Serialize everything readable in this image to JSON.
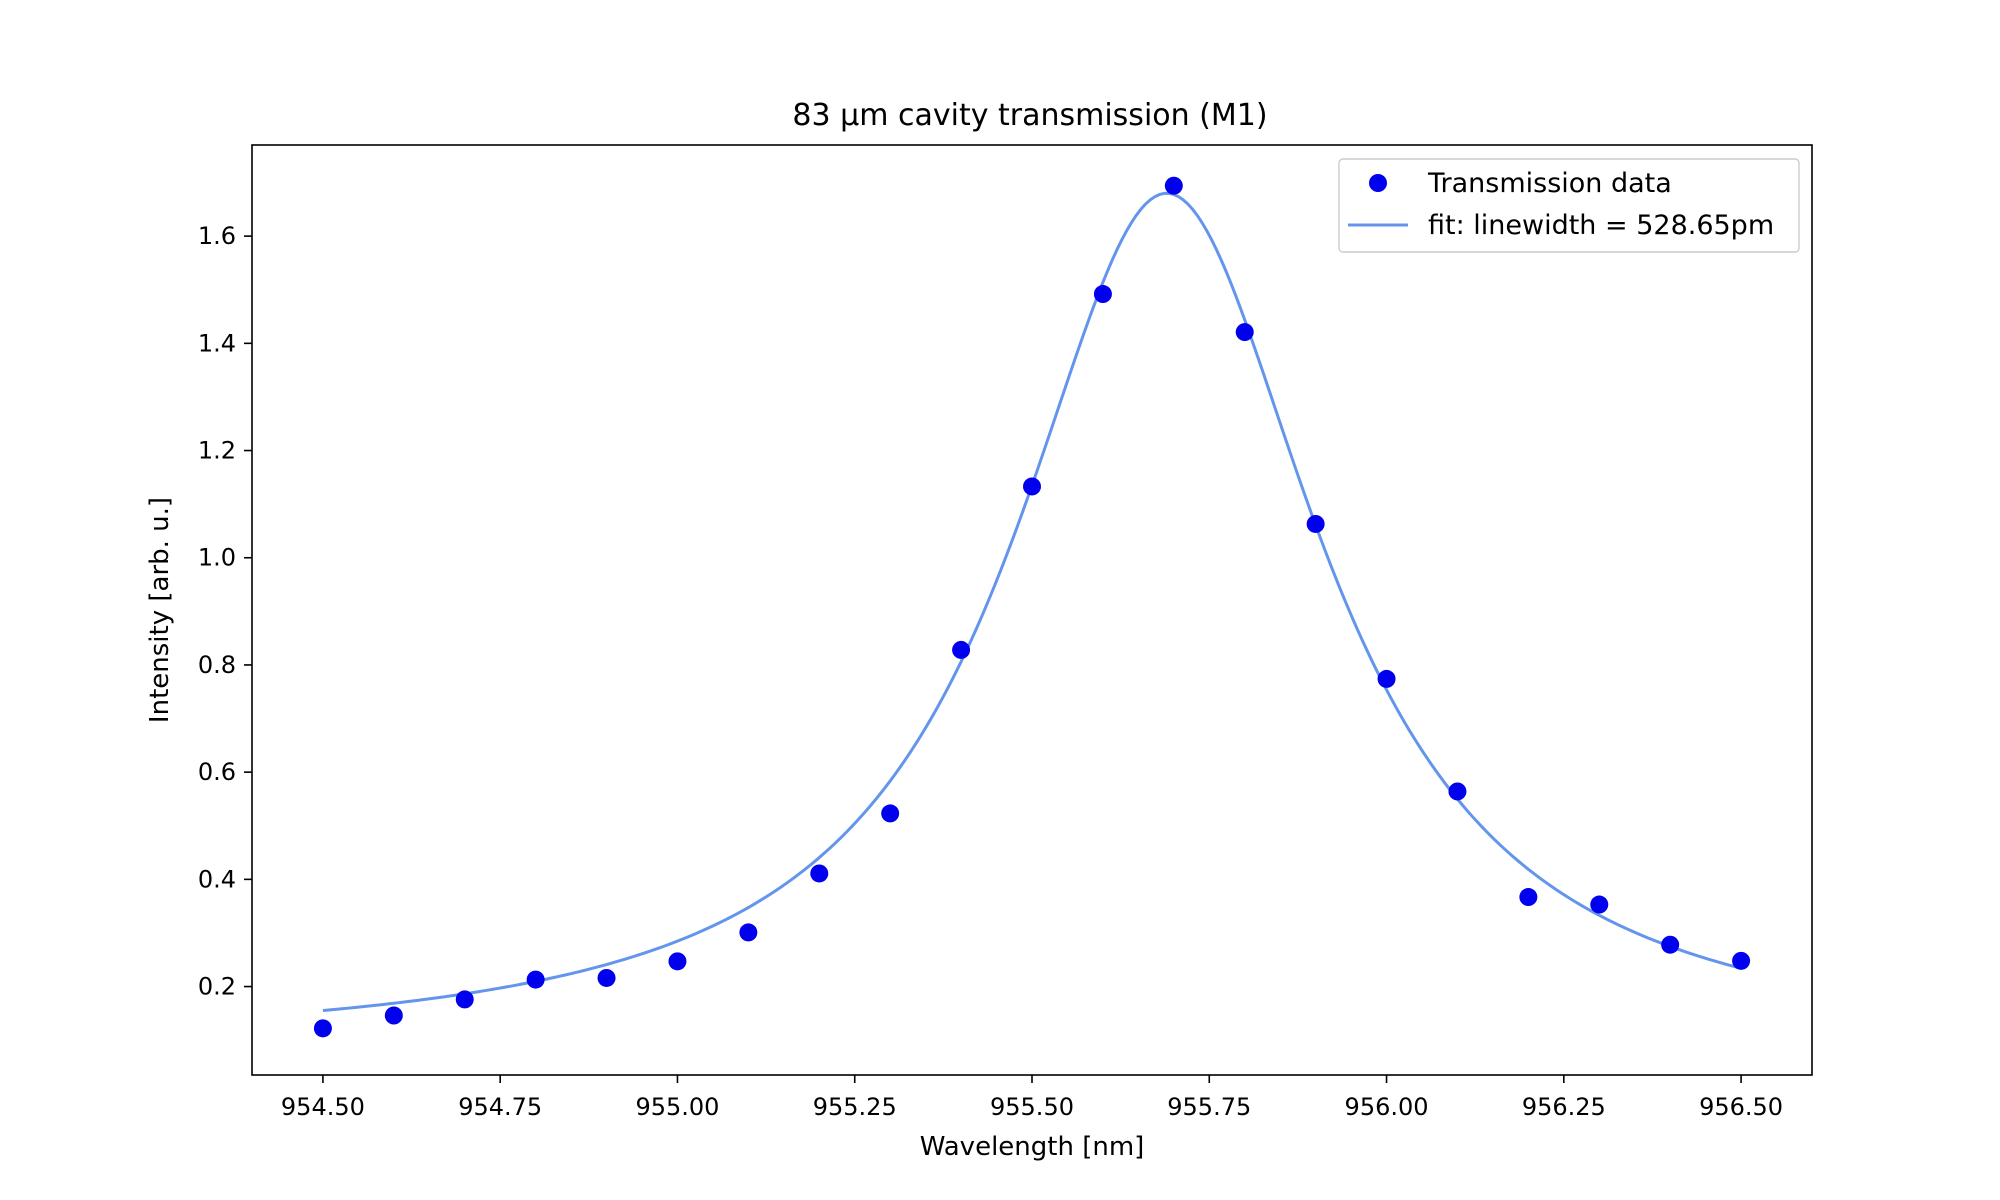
{
  "chart_data": {
    "type": "scatter",
    "title": "83 µm cavity transmission (M1)",
    "xlabel": "Wavelength [nm]",
    "ylabel": "Intensity [arb. u.]",
    "xlim": [
      954.4,
      956.6
    ],
    "ylim": [
      0.035,
      1.77
    ],
    "xticks": [
      954.5,
      954.75,
      955.0,
      955.25,
      955.5,
      955.75,
      956.0,
      956.25,
      956.5
    ],
    "xtick_labels": [
      "954.50",
      "954.75",
      "955.00",
      "955.25",
      "955.50",
      "955.75",
      "956.00",
      "956.25",
      "956.50"
    ],
    "yticks": [
      0.2,
      0.4,
      0.6,
      0.8,
      1.0,
      1.2,
      1.4,
      1.6
    ],
    "ytick_labels": [
      "0.2",
      "0.4",
      "0.6",
      "0.8",
      "1.0",
      "1.2",
      "1.4",
      "1.6"
    ],
    "grid": false,
    "legend_position": "top-right",
    "series": [
      {
        "name": "Transmission data",
        "kind": "scatter",
        "color": "#0000ee",
        "x": [
          954.5,
          954.6,
          954.7,
          954.8,
          954.9,
          955.0,
          955.1,
          955.2,
          955.3,
          955.4,
          955.5,
          955.6,
          955.7,
          955.8,
          955.9,
          956.0,
          956.1,
          956.2,
          956.3,
          956.4,
          956.5
        ],
        "y": [
          0.122,
          0.146,
          0.176,
          0.213,
          0.216,
          0.247,
          0.301,
          0.411,
          0.523,
          0.828,
          1.133,
          1.492,
          1.694,
          1.421,
          1.063,
          0.774,
          0.564,
          0.367,
          0.353,
          0.278,
          0.248
        ]
      },
      {
        "name": "fit: linewidth = 528.65pm",
        "kind": "line",
        "color": "#6495ed",
        "model": "lorentzian",
        "center": 955.69,
        "fwhm": 0.52865,
        "amplitude": 1.6,
        "offset": 0.08,
        "x_range": [
          954.5,
          956.5
        ]
      }
    ]
  }
}
